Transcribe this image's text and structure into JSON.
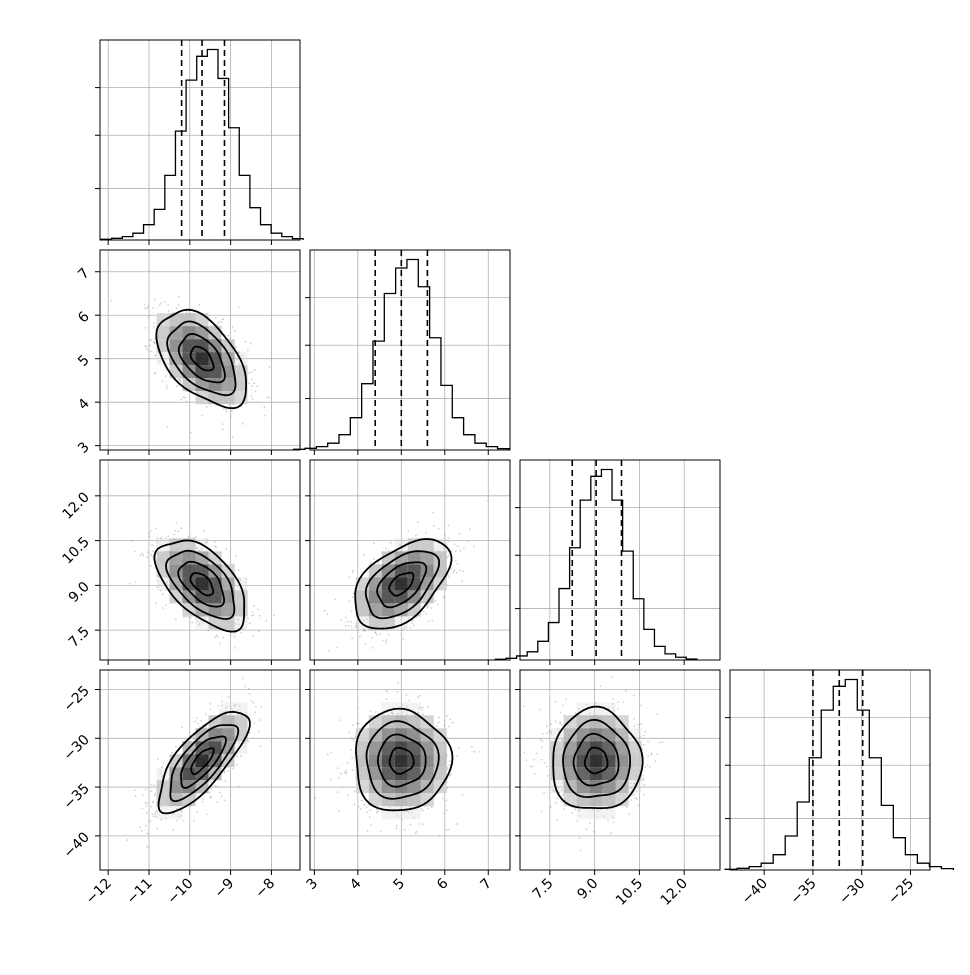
{
  "chart_data": {
    "type": "corner",
    "grid": true,
    "parameters": [
      {
        "range": [
          -12.2,
          -7.3
        ],
        "ticks": [
          -12,
          -11,
          -10,
          -9,
          -8
        ],
        "tick_labels": [
          "−12",
          "−11",
          "−10",
          "−9",
          "−8"
        ],
        "mean": -9.7,
        "sd": 0.55,
        "quantiles": [
          -10.2,
          -9.7,
          -9.15
        ]
      },
      {
        "range": [
          2.9,
          7.5
        ],
        "ticks": [
          3,
          4,
          5,
          6,
          7
        ],
        "tick_labels": [
          "3",
          "4",
          "5",
          "6",
          "7"
        ],
        "mean": 5.0,
        "sd": 0.55,
        "quantiles": [
          4.4,
          5.0,
          5.6
        ]
      },
      {
        "range": [
          6.5,
          13.2
        ],
        "ticks": [
          7.5,
          9.0,
          10.5,
          12.0
        ],
        "tick_labels": [
          "7.5",
          "9.0",
          "10.5",
          "12.0"
        ],
        "mean": 9.05,
        "sd": 0.75,
        "quantiles": [
          8.25,
          9.05,
          9.9
        ]
      },
      {
        "range": [
          -43.5,
          -23.0
        ],
        "ticks": [
          -40,
          -35,
          -30,
          -25
        ],
        "tick_labels": [
          "−40",
          "−35",
          "−30",
          "−25"
        ],
        "mean": -32.3,
        "sd": 2.6,
        "quantiles": [
          -35.0,
          -32.3,
          -29.9
        ]
      }
    ],
    "correlations": [
      {
        "i": 1,
        "j": 0,
        "rho": -0.5
      },
      {
        "i": 2,
        "j": 0,
        "rho": -0.55
      },
      {
        "i": 2,
        "j": 1,
        "rho": 0.5
      },
      {
        "i": 3,
        "j": 0,
        "rho": 0.75
      },
      {
        "i": 3,
        "j": 1,
        "rho": 0.0
      },
      {
        "i": 3,
        "j": 2,
        "rho": 0.0
      }
    ],
    "histograms": [
      [
        2,
        5,
        10,
        20,
        45,
        90,
        190,
        320,
        470,
        540,
        560,
        475,
        330,
        190,
        95,
        45,
        20,
        10,
        4
      ],
      [
        2,
        5,
        10,
        20,
        45,
        95,
        195,
        320,
        460,
        535,
        560,
        480,
        330,
        190,
        95,
        45,
        20,
        10,
        4
      ],
      [
        2,
        5,
        12,
        24,
        55,
        110,
        210,
        330,
        470,
        540,
        560,
        470,
        320,
        180,
        90,
        40,
        18,
        8,
        3
      ],
      [
        2,
        5,
        10,
        20,
        45,
        100,
        200,
        330,
        470,
        540,
        560,
        470,
        330,
        190,
        95,
        45,
        20,
        10,
        4
      ]
    ],
    "contour_levels_sigma": [
      0.5,
      1.0,
      1.5,
      2.0
    ]
  }
}
